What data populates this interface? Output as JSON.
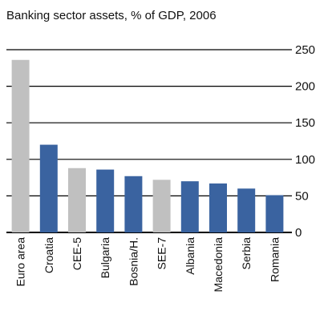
{
  "chart_data": {
    "type": "bar",
    "title": "Banking sector assets, % of GDP, 2006",
    "categories": [
      "Euro area",
      "Croatia",
      "CEE-5",
      "Bulgaria",
      "Bosnia/H.",
      "SEE-7",
      "Albania",
      "Macedonia",
      "Serbia",
      "Romania"
    ],
    "values": [
      236,
      120,
      88,
      86,
      77,
      72,
      70,
      67,
      60,
      51
    ],
    "highlight": [
      true,
      false,
      true,
      false,
      false,
      true,
      false,
      false,
      false,
      false
    ],
    "yticks": [
      0,
      50,
      100,
      150,
      200,
      250
    ],
    "ylim": [
      0,
      250
    ],
    "grid": true,
    "y_axis_side": "right",
    "colors": {
      "main": "#3a63a0",
      "highlight": "#c0c0c0",
      "grid": "#000000"
    }
  }
}
